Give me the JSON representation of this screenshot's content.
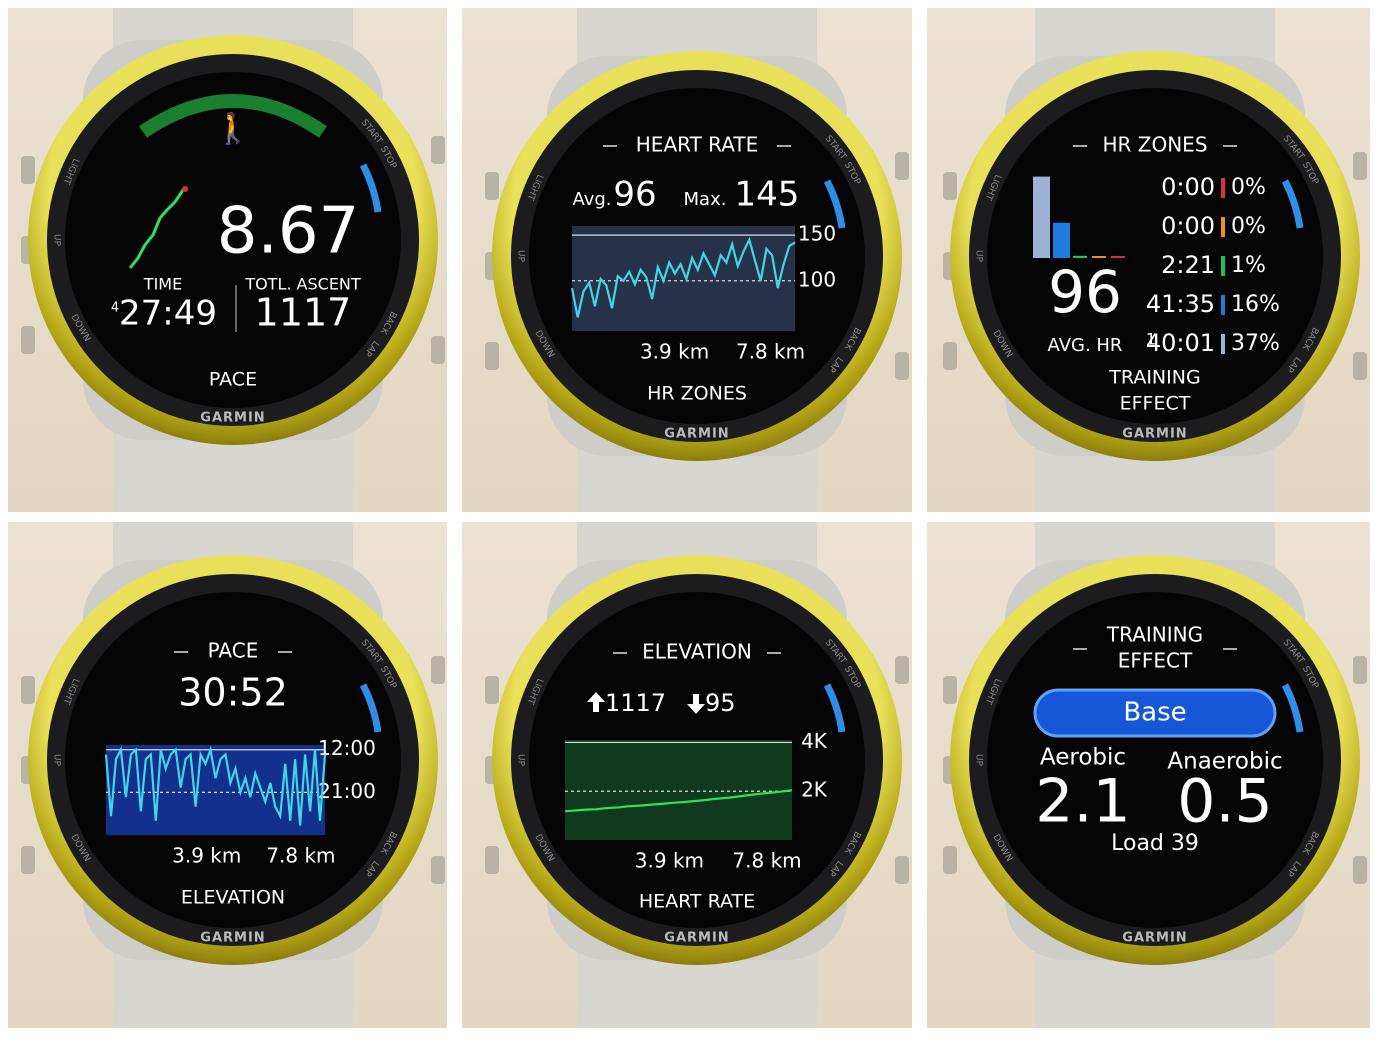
{
  "brand": "GARMIN",
  "bezel": {
    "light": "LIGHT",
    "up": "UP",
    "down": "DOWN",
    "start": "START",
    "stop": "STOP",
    "back": "BACK",
    "lap": "LAP"
  },
  "panels": [
    {
      "kind": "summary",
      "value": "8.67",
      "time_label": "TIME",
      "time_hours": "4",
      "time": "27:49",
      "ascent_label": "TOTL. ASCENT",
      "ascent": "1117",
      "next": "PACE"
    },
    {
      "kind": "heart_rate",
      "title": "HEART RATE",
      "avg_label": "Avg.",
      "avg": "96",
      "max_label": "Max.",
      "max": "145",
      "chart": {
        "values": [
          92,
          60,
          88,
          98,
          72,
          102,
          95,
          70,
          105,
          100,
          110,
          96,
          112,
          104,
          80,
          115,
          100,
          120,
          108,
          118,
          102,
          125,
          112,
          130,
          118,
          106,
          128,
          120,
          140,
          116,
          132,
          145,
          122,
          100,
          135,
          128,
          92,
          118,
          138,
          142
        ],
        "ylim": [
          45,
          160
        ],
        "yticks": [
          150,
          100
        ],
        "x_labels": [
          "3.9 km",
          "7.8 km"
        ]
      },
      "next": "HR ZONES"
    },
    {
      "kind": "hr_zones",
      "title": "HR ZONES",
      "avg": "96",
      "avg_label": "AVG. HR",
      "rows": [
        {
          "time": "0:00",
          "percent": 0,
          "percent_label": "0%",
          "color": "#e0303a"
        },
        {
          "time": "0:00",
          "percent": 0,
          "percent_label": "0%",
          "color": "#f0921a"
        },
        {
          "time": "2:21",
          "percent": 1,
          "percent_label": "1%",
          "color": "#1ec54a"
        },
        {
          "time": "41:35",
          "percent": 16,
          "percent_label": "16%",
          "color": "#1e7be0"
        },
        {
          "hours": "1",
          "time": "40:01",
          "percent": 37,
          "percent_label": "37%",
          "color": "#9db3d6"
        }
      ],
      "next": [
        "TRAINING",
        "EFFECT"
      ]
    },
    {
      "kind": "pace",
      "title": "PACE",
      "value": "30:52",
      "chart": {
        "values": [
          13,
          26,
          14,
          12,
          22,
          13,
          12,
          25,
          14,
          13,
          27,
          12,
          16,
          13,
          12,
          20,
          14,
          13,
          24,
          13,
          15,
          12,
          18,
          14,
          13,
          19,
          16,
          21,
          18,
          22,
          17,
          20,
          23,
          19,
          24,
          26,
          15,
          27,
          14,
          28,
          13,
          25,
          12,
          27,
          13
        ],
        "ylim": [
          30,
          11
        ],
        "yticks": [
          {
            "value": 12,
            "label": "12:00"
          },
          {
            "value": 21,
            "label": "21:00"
          }
        ],
        "x_labels": [
          "3.9 km",
          "7.8 km"
        ]
      },
      "next": "ELEVATION"
    },
    {
      "kind": "elevation",
      "title": "ELEVATION",
      "ascent": "1117",
      "descent": "95",
      "chart": {
        "values": [
          1180,
          1200,
          1230,
          1250,
          1260,
          1300,
          1320,
          1340,
          1380,
          1400,
          1420,
          1450,
          1470,
          1500,
          1530,
          1550,
          1580,
          1610,
          1640,
          1680,
          1710,
          1740,
          1780,
          1820,
          1860,
          1900,
          1930,
          1960,
          2000,
          2040
        ],
        "ylim": [
          0,
          4100
        ],
        "yticks": [
          {
            "value": 4000,
            "label": "4K"
          },
          {
            "value": 2000,
            "label": "2K"
          }
        ],
        "x_labels": [
          "3.9 km",
          "7.8 km"
        ]
      },
      "next": "HEART RATE"
    },
    {
      "kind": "training_effect",
      "title": [
        "TRAINING",
        "EFFECT"
      ],
      "status": "Base",
      "aerobic_label": "Aerobic",
      "aerobic": "2.1",
      "anaerobic_label": "Anaerobic",
      "anaerobic": "0.5",
      "load": "Load 39"
    }
  ]
}
